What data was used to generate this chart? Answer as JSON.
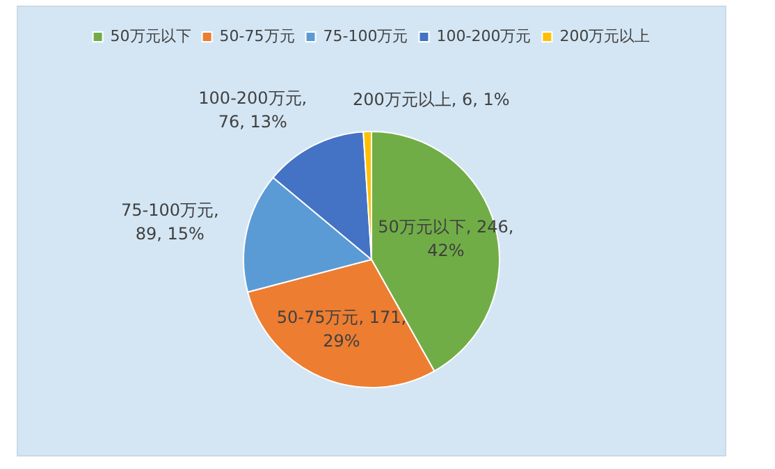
{
  "chart_data": {
    "type": "pie",
    "categories": [
      "50万元以下",
      "50-75万元",
      "75-100万元",
      "100-200万元",
      "200万元以上"
    ],
    "values": [
      246,
      171,
      89,
      76,
      6
    ],
    "colors": [
      "#70ad47",
      "#ed7d31",
      "#5b9bd5",
      "#4472c4",
      "#ffc000"
    ],
    "value_labels": [
      "50万元以下, 246, 42%",
      "50-75万元, 171, 29%",
      "75-100万元, 89, 15%",
      "100-200万元, 76, 13%",
      "200万元以上, 6, 1%"
    ],
    "legend": "top"
  }
}
